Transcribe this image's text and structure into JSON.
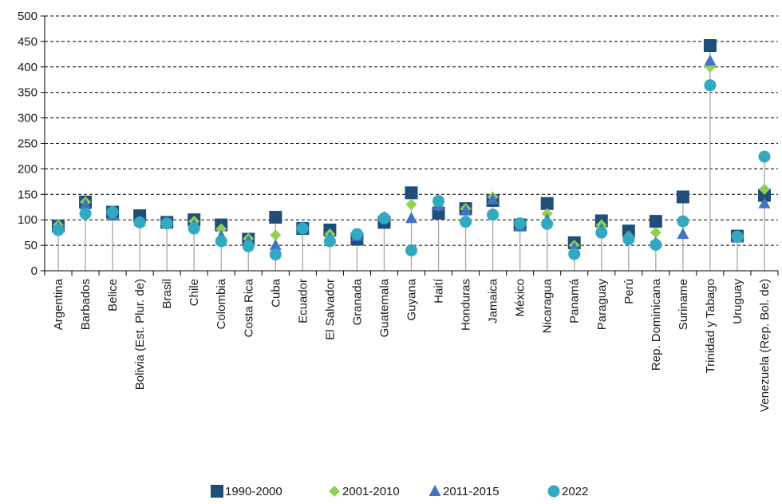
{
  "chart_data": {
    "type": "scatter",
    "title": "",
    "xlabel": "",
    "ylabel": "",
    "ylim": [
      0,
      500
    ],
    "yticks": [
      0,
      50,
      100,
      150,
      200,
      250,
      300,
      350,
      400,
      450,
      500
    ],
    "grid": "horizontal dashed",
    "legend_position": "bottom",
    "categories": [
      "Argentina",
      "Barbados",
      "Belice",
      "Bolivia (Est. Plur. de)",
      "Brasil",
      "Chile",
      "Colombia",
      "Costa Rica",
      "Cuba",
      "Ecuador",
      "El Salvador",
      "Granada",
      "Guatemala",
      "Guyana",
      "Haití",
      "Honduras",
      "Jamaica",
      "México",
      "Nicaragua",
      "Panamá",
      "Paraguay",
      "Perú",
      "Rep. Dominicana",
      "Suriname",
      "Trinidad y Tabago",
      "Uruguay",
      "Venezuela (Rep. Bol. de)"
    ],
    "series": [
      {
        "name": "1990-2000",
        "marker": "square",
        "color": "#1f4e79",
        "values": [
          88,
          135,
          115,
          108,
          95,
          100,
          90,
          62,
          105,
          83,
          80,
          62,
          95,
          153,
          113,
          122,
          138,
          90,
          132,
          55,
          98,
          78,
          97,
          145,
          442,
          68,
          148
        ]
      },
      {
        "name": "2001-2010",
        "marker": "diamond",
        "color": "#92d050",
        "values": [
          90,
          135,
          118,
          97,
          93,
          97,
          82,
          63,
          70,
          83,
          72,
          70,
          105,
          130,
          128,
          122,
          145,
          90,
          112,
          50,
          90,
          68,
          75,
          98,
          400,
          65,
          160
        ]
      },
      {
        "name": "2011-2015",
        "marker": "triangle",
        "color": "#4472c4",
        "values": [
          85,
          130,
          108,
          97,
          93,
          90,
          68,
          58,
          50,
          85,
          65,
          68,
          105,
          103,
          128,
          118,
          140,
          88,
          100,
          45,
          82,
          65,
          55,
          72,
          412,
          65,
          132
        ]
      },
      {
        "name": "2022",
        "marker": "circle",
        "color": "#31a9c1",
        "values": [
          80,
          112,
          115,
          95,
          93,
          83,
          58,
          48,
          32,
          83,
          58,
          72,
          103,
          40,
          137,
          96,
          110,
          93,
          92,
          33,
          75,
          62,
          51,
          97,
          364,
          67,
          224
        ]
      }
    ]
  },
  "colors": {
    "stem": "#a6a6a6",
    "grid": "#000000",
    "axis": "#000000"
  }
}
